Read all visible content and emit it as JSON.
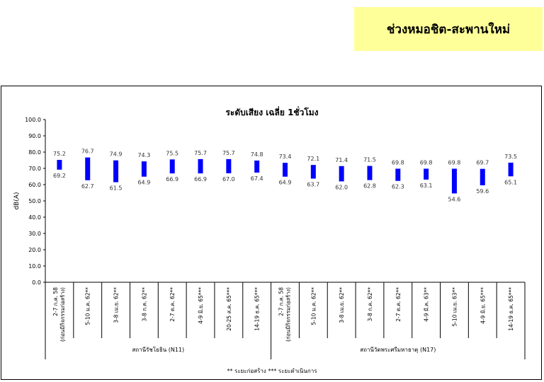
{
  "header": {
    "title": "ช่วงหมอชิต-สะพานใหม่"
  },
  "chart_data": {
    "type": "bar",
    "title": "ระดับเสียง เฉลี่ย 1ชั่วโมง",
    "ylabel": "dB(A)",
    "xlabel": "",
    "ylim": [
      0,
      100
    ],
    "yticks": [
      "0.0",
      "10.0",
      "20.0",
      "30.0",
      "40.0",
      "50.0",
      "60.0",
      "70.0",
      "80.0",
      "90.0",
      "100.0"
    ],
    "categories": [
      "2-7 ก.ค. 58\n(ก่อนมีกิจกรรมก่อสร้าง)",
      "5-10 ม.ค. 62**",
      "3-8 เม.ย. 62**",
      "3-8 ก.ค. 62**",
      "2-7 ต.ค. 62**",
      "4-9 มิ.ย. 65***",
      "20-25 ส.ค. 65***",
      "14-19 ธ.ค. 65***",
      "2-7 ก.ค. 58\n(ก่อนมีกิจกรรมก่อสร้าง)",
      "5-10 ม.ค. 62**",
      "3-8 เม.ย. 62**",
      "3-8 ก.ค. 62**",
      "2-7 ต.ค. 62**",
      "4-9 มี.ค. 63**",
      "5-10 เม.ย. 63**",
      "4-9 มิ.ย. 65***",
      "14-19 ธ.ค. 65***"
    ],
    "series": [
      {
        "name": "",
        "max": [
          75.2,
          76.7,
          74.9,
          74.3,
          75.5,
          75.7,
          75.7,
          74.8,
          73.4,
          72.1,
          71.4,
          71.5,
          69.8,
          69.8,
          69.8,
          69.7,
          73.5
        ],
        "min": [
          69.2,
          62.7,
          61.5,
          64.9,
          66.9,
          66.9,
          67.0,
          67.4,
          64.9,
          63.7,
          62.0,
          62.8,
          62.3,
          63.1,
          54.6,
          59.6,
          65.1
        ]
      }
    ],
    "max_labels": [
      "75.2",
      "76.7",
      "74.9",
      "74.3",
      "75.5",
      "75.7",
      "75.7",
      "74.8",
      "73.4",
      "72.1",
      "71.4",
      "71.5",
      "69.8",
      "69.8",
      "69.8",
      "69.7",
      "73.5"
    ],
    "min_labels": [
      "69.2",
      "62.7",
      "61.5",
      "64.9",
      "66.9",
      "66.9",
      "67.0",
      "67.4",
      "64.9",
      "63.7",
      "62.0",
      "62.8",
      "62.3",
      "63.1",
      "54.6",
      "59.6",
      "65.1"
    ],
    "groups": [
      {
        "label": "สถานีรัชโยธิน (N11)",
        "start": 0,
        "count": 8
      },
      {
        "label": "สถานีวัดพระศรีมหาธาตุ (N17)",
        "start": 8,
        "count": 9
      }
    ],
    "bar_color": "#0000ff",
    "grid": false,
    "legend": "none"
  },
  "footer": {
    "note": "** ระยะก่อสร้าง     *** ระยะดำเนินการ"
  }
}
